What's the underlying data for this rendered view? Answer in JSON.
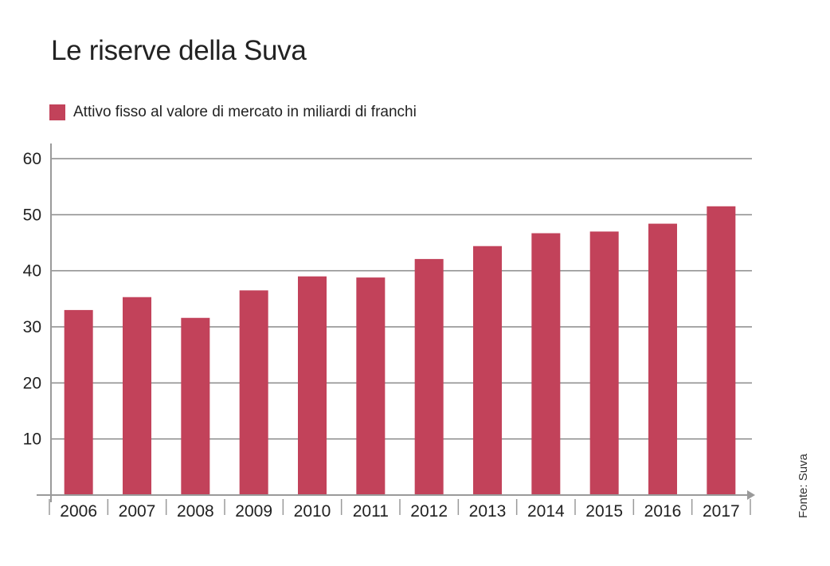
{
  "title": "Le riserve della Suva",
  "source": "Fonte: Suva",
  "colors": {
    "bar": "#c2425a",
    "grid": "#8a8a8a",
    "axis": "#9a9a9a"
  },
  "chart_data": {
    "type": "bar",
    "title": "Le riserve della Suva",
    "xlabel": "",
    "ylabel": "",
    "categories": [
      "2006",
      "2007",
      "2008",
      "2009",
      "2010",
      "2011",
      "2012",
      "2013",
      "2014",
      "2015",
      "2016",
      "2017"
    ],
    "series": [
      {
        "name": "Attivo fisso al valore di mercato in miliardi di franchi",
        "values": [
          33.0,
          35.3,
          31.6,
          36.5,
          39.0,
          38.8,
          42.1,
          44.4,
          46.7,
          47.0,
          48.4,
          51.5
        ]
      }
    ],
    "ylim": [
      0,
      60
    ],
    "yticks": [
      10,
      20,
      30,
      40,
      50,
      60
    ],
    "grid": true,
    "legend": "top-left"
  }
}
